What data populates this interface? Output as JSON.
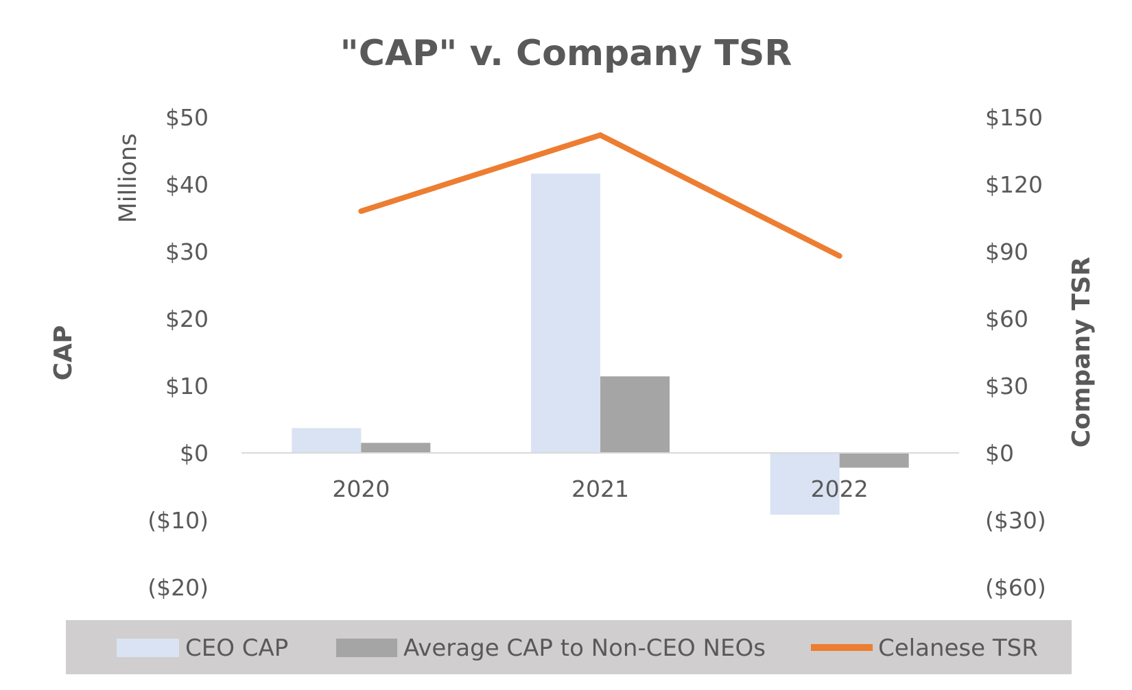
{
  "chart_data": {
    "type": "bar",
    "title": "\"CAP\" v. Company TSR",
    "categories": [
      "2020",
      "2021",
      "2022"
    ],
    "series": [
      {
        "name": "CEO CAP",
        "kind": "bar",
        "axis": "left",
        "color": "#dae3f3",
        "values": [
          3.7,
          41.6,
          -9.2
        ]
      },
      {
        "name": "Average CAP to Non-CEO NEOs",
        "kind": "bar",
        "axis": "left",
        "color": "#a5a5a5",
        "values": [
          1.5,
          11.4,
          -2.2
        ]
      },
      {
        "name": "Celanese TSR",
        "kind": "line",
        "axis": "right",
        "color": "#ed7d31",
        "values": [
          108,
          142,
          88
        ]
      }
    ],
    "y_left": {
      "label": "CAP",
      "units_label": "Millions",
      "min": -20,
      "max": 50,
      "step": 10,
      "ticks": [
        "($20)",
        "($10)",
        "$0",
        "$10",
        "$20",
        "$30",
        "$40",
        "$50"
      ]
    },
    "y_right": {
      "label": "Company TSR",
      "min": -60,
      "max": 150,
      "step": 30,
      "ticks": [
        "($60)",
        "($30)",
        "$0",
        "$30",
        "$60",
        "$90",
        "$120",
        "$150"
      ]
    },
    "legend_position": "bottom",
    "gridlines": false
  }
}
